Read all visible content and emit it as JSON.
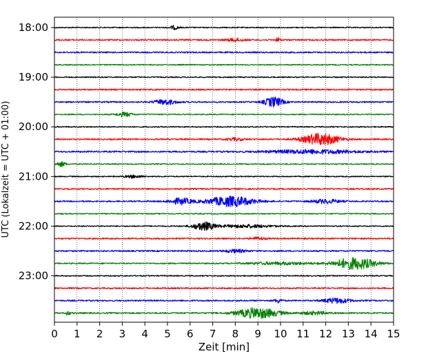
{
  "chart_data": {
    "type": "line",
    "title": "",
    "xlabel": "Zeit  [min]",
    "ylabel": "UTC (Lokalzeit = UTC + 01:00)",
    "xlim": [
      0,
      15
    ],
    "x_ticks": [
      0,
      1,
      2,
      3,
      4,
      5,
      6,
      7,
      8,
      9,
      10,
      11,
      12,
      13,
      14,
      15
    ],
    "x_tick_labels": [
      "0",
      "1",
      "2",
      "3",
      "4",
      "5",
      "6",
      "7",
      "8",
      "9",
      "10",
      "11",
      "12",
      "13",
      "14",
      "15"
    ],
    "y_tick_labels": [
      "18:00",
      "19:00",
      "20:00",
      "21:00",
      "22:00",
      "23:00"
    ],
    "trace_interval_minutes": 15,
    "grid": "vertical dotted",
    "color_cycle": [
      "#000000",
      "#ff0000",
      "#0000ff",
      "#008000"
    ],
    "traces": [
      {
        "start": "18:00",
        "color": "#000000",
        "noise": 0.35,
        "events": [
          {
            "t": 5.3,
            "amp": 1.2,
            "width": 0.2
          }
        ]
      },
      {
        "start": "18:15",
        "color": "#ff0000",
        "noise": 0.45,
        "events": [
          {
            "t": 8.0,
            "amp": 1.0,
            "width": 0.4
          },
          {
            "t": 9.9,
            "amp": 1.6,
            "width": 0.08
          }
        ]
      },
      {
        "start": "18:30",
        "color": "#0000ff",
        "noise": 0.45,
        "events": []
      },
      {
        "start": "18:45",
        "color": "#008000",
        "noise": 0.35,
        "events": []
      },
      {
        "start": "19:00",
        "color": "#000000",
        "noise": 0.35,
        "events": []
      },
      {
        "start": "19:15",
        "color": "#ff0000",
        "noise": 0.45,
        "events": []
      },
      {
        "start": "19:30",
        "color": "#0000ff",
        "noise": 0.45,
        "events": [
          {
            "t": 4.9,
            "amp": 1.6,
            "width": 0.5
          },
          {
            "t": 9.7,
            "amp": 3.2,
            "width": 0.4
          }
        ]
      },
      {
        "start": "19:45",
        "color": "#008000",
        "noise": 0.35,
        "events": [
          {
            "t": 3.1,
            "amp": 1.4,
            "width": 0.35
          }
        ]
      },
      {
        "start": "20:00",
        "color": "#000000",
        "noise": 0.35,
        "events": []
      },
      {
        "start": "20:15",
        "color": "#ff0000",
        "noise": 0.45,
        "events": [
          {
            "t": 8.0,
            "amp": 0.8,
            "width": 0.4
          },
          {
            "t": 11.8,
            "amp": 3.8,
            "width": 0.8
          }
        ]
      },
      {
        "start": "20:30",
        "color": "#0000ff",
        "noise": 0.5,
        "events": [
          {
            "t": 11.5,
            "amp": 1.2,
            "width": 2.0
          }
        ]
      },
      {
        "start": "20:45",
        "color": "#008000",
        "noise": 0.35,
        "events": [
          {
            "t": 0.3,
            "amp": 1.6,
            "width": 0.2
          }
        ]
      },
      {
        "start": "21:00",
        "color": "#000000",
        "noise": 0.35,
        "events": [
          {
            "t": 3.5,
            "amp": 0.9,
            "width": 0.4
          }
        ]
      },
      {
        "start": "21:15",
        "color": "#ff0000",
        "noise": 0.45,
        "events": []
      },
      {
        "start": "21:30",
        "color": "#0000ff",
        "noise": 0.45,
        "events": [
          {
            "t": 5.6,
            "amp": 2.0,
            "width": 0.5
          },
          {
            "t": 7.8,
            "amp": 3.3,
            "width": 1.0
          },
          {
            "t": 12.0,
            "amp": 1.3,
            "width": 0.6
          }
        ]
      },
      {
        "start": "21:45",
        "color": "#008000",
        "noise": 0.35,
        "events": []
      },
      {
        "start": "22:00",
        "color": "#000000",
        "noise": 0.35,
        "events": [
          {
            "t": 6.6,
            "amp": 2.6,
            "width": 0.5
          },
          {
            "t": 8.5,
            "amp": 1.0,
            "width": 1.2
          }
        ]
      },
      {
        "start": "22:15",
        "color": "#ff0000",
        "noise": 0.45,
        "events": [
          {
            "t": 9.0,
            "amp": 0.9,
            "width": 0.3
          }
        ]
      },
      {
        "start": "22:30",
        "color": "#0000ff",
        "noise": 0.45,
        "events": [
          {
            "t": 8.0,
            "amp": 1.0,
            "width": 0.5
          }
        ]
      },
      {
        "start": "22:45",
        "color": "#008000",
        "noise": 0.4,
        "events": [
          {
            "t": 10.0,
            "amp": 0.8,
            "width": 1.5
          },
          {
            "t": 13.3,
            "amp": 3.8,
            "width": 0.9
          }
        ]
      },
      {
        "start": "23:00",
        "color": "#000000",
        "noise": 0.35,
        "events": []
      },
      {
        "start": "23:15",
        "color": "#ff0000",
        "noise": 0.45,
        "events": []
      },
      {
        "start": "23:30",
        "color": "#0000ff",
        "noise": 0.45,
        "events": [
          {
            "t": 9.9,
            "amp": 1.5,
            "width": 0.15
          },
          {
            "t": 12.5,
            "amp": 1.6,
            "width": 0.6
          }
        ]
      },
      {
        "start": "23:45",
        "color": "#008000",
        "noise": 0.45,
        "events": [
          {
            "t": 0.6,
            "amp": 1.5,
            "width": 0.08
          },
          {
            "t": 9.0,
            "amp": 3.4,
            "width": 0.9
          },
          {
            "t": 11.5,
            "amp": 1.0,
            "width": 0.6
          }
        ]
      }
    ]
  }
}
